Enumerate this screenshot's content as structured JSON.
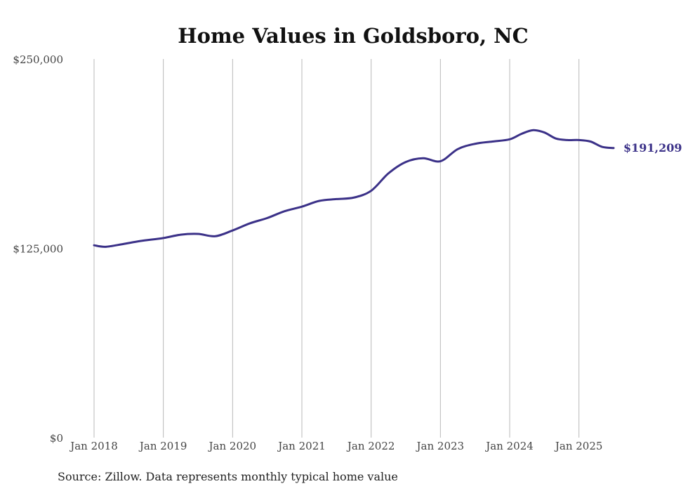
{
  "chart_data": {
    "type": "line",
    "title": "Home Values in Goldsboro, NC",
    "xlabel": "",
    "ylabel": "",
    "ylim": [
      0,
      250000
    ],
    "yticks": [
      {
        "value": 0,
        "label": "$0"
      },
      {
        "value": 125000,
        "label": "$125,000"
      },
      {
        "value": 250000,
        "label": "$250,000"
      }
    ],
    "xlim": [
      "2018-01",
      "2025-07"
    ],
    "xticks": [
      {
        "date": "2018-01",
        "label": "Jan 2018"
      },
      {
        "date": "2019-01",
        "label": "Jan 2019"
      },
      {
        "date": "2020-01",
        "label": "Jan 2020"
      },
      {
        "date": "2021-01",
        "label": "Jan 2021"
      },
      {
        "date": "2022-01",
        "label": "Jan 2022"
      },
      {
        "date": "2023-01",
        "label": "Jan 2023"
      },
      {
        "date": "2024-01",
        "label": "Jan 2024"
      },
      {
        "date": "2025-01",
        "label": "Jan 2025"
      }
    ],
    "grid": "vertical",
    "legend": "none",
    "series_color": "#3b3188",
    "end_label": "$191,209",
    "x": [
      "2018-01",
      "2018-03",
      "2018-06",
      "2018-09",
      "2019-01",
      "2019-04",
      "2019-07",
      "2019-10",
      "2020-01",
      "2020-04",
      "2020-07",
      "2020-10",
      "2021-01",
      "2021-04",
      "2021-07",
      "2021-10",
      "2022-01",
      "2022-04",
      "2022-07",
      "2022-10",
      "2023-01",
      "2023-04",
      "2023-07",
      "2023-10",
      "2024-01",
      "2024-03",
      "2024-05",
      "2024-07",
      "2024-09",
      "2024-11",
      "2025-01",
      "2025-03",
      "2025-05",
      "2025-07"
    ],
    "y": [
      127000,
      126000,
      127800,
      129800,
      131800,
      134000,
      134500,
      133000,
      136800,
      141500,
      145000,
      149500,
      152500,
      156300,
      157500,
      158500,
      163000,
      174500,
      182000,
      184500,
      182500,
      190500,
      194000,
      195500,
      197000,
      200500,
      203000,
      201500,
      197500,
      196500,
      196500,
      195500,
      192000,
      191209
    ]
  },
  "source": "Source: Zillow. Data represents monthly typical home value"
}
